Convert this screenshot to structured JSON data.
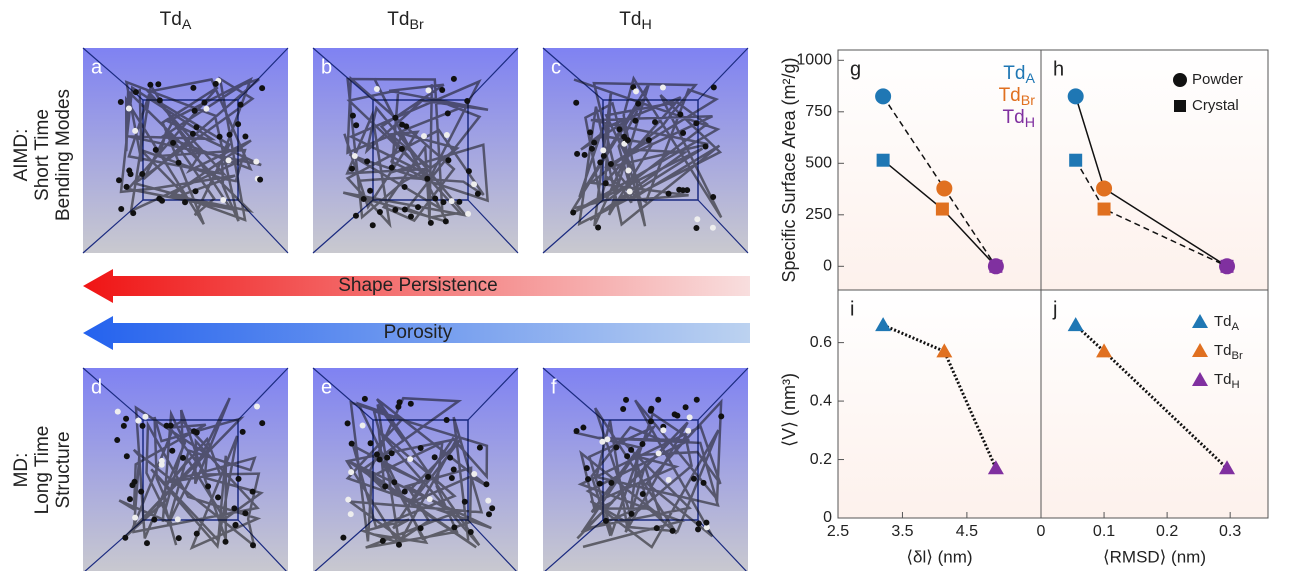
{
  "column_headers": [
    "TdA",
    "TdBr",
    "TdH"
  ],
  "panel_labels": [
    "a",
    "b",
    "c",
    "d",
    "e",
    "f"
  ],
  "row_labels": [
    [
      "AIMD:",
      "Short Time",
      "Bending Modes"
    ],
    [
      "MD:",
      "Long Time",
      "Structure"
    ]
  ],
  "arrows": [
    "Shape Persistence",
    "Porosity"
  ],
  "chart_data": [
    {
      "type": "line",
      "panel": "g",
      "ylabel": "Specific Surface Area (m²/g)",
      "xlim": [
        2.5,
        5.65
      ],
      "ylim": [
        -115,
        1050
      ],
      "yticks": [
        0,
        250,
        500,
        750,
        1000
      ],
      "labels": [
        "TdA",
        "TdBr",
        "TdH"
      ],
      "colors": [
        "#1f77b4",
        "#e07020",
        "#8030a0"
      ],
      "series": [
        {
          "marker": "circle",
          "dash": "dashed",
          "x": [
            3.2,
            4.15,
            4.95
          ],
          "values": [
            825,
            378,
            0
          ]
        },
        {
          "marker": "square",
          "dash": "solid",
          "x": [
            3.2,
            4.12,
            4.95
          ],
          "values": [
            515,
            278,
            0
          ]
        }
      ]
    },
    {
      "type": "line",
      "panel": "h",
      "xlim": [
        0,
        0.36
      ],
      "ylim": [
        -115,
        1050
      ],
      "colors": [
        "#1f77b4",
        "#e07020",
        "#8030a0"
      ],
      "series": [
        {
          "name": "Powder",
          "marker": "circle",
          "dash": "solid",
          "x": [
            0.055,
            0.1,
            0.295
          ],
          "values": [
            825,
            378,
            0
          ]
        },
        {
          "name": "Crystal",
          "marker": "square",
          "dash": "dashed",
          "x": [
            0.055,
            0.1,
            0.295
          ],
          "values": [
            515,
            278,
            0
          ]
        }
      ]
    },
    {
      "type": "line",
      "panel": "i",
      "xlabel": "⟨δl⟩ (nm)",
      "ylabel": "⟨V⟩ (nm³)",
      "xlim": [
        2.5,
        5.65
      ],
      "ylim": [
        0,
        0.78
      ],
      "xticks": [
        2.5,
        3.5,
        4.5
      ],
      "yticks": [
        0,
        0.2,
        0.4,
        0.6
      ],
      "colors": [
        "#1f77b4",
        "#e07020",
        "#8030a0"
      ],
      "series": [
        {
          "marker": "triangle",
          "dash": "dotted",
          "x": [
            3.2,
            4.15,
            4.95
          ],
          "values": [
            0.66,
            0.57,
            0.17
          ]
        }
      ]
    },
    {
      "type": "line",
      "panel": "j",
      "xlabel": "⟨RMSD⟩ (nm)",
      "xlim": [
        0,
        0.36
      ],
      "ylim": [
        0,
        0.78
      ],
      "xticks": [
        0,
        0.1,
        0.2,
        0.3
      ],
      "labels": [
        "TdA",
        "TdBr",
        "TdH"
      ],
      "colors": [
        "#1f77b4",
        "#e07020",
        "#8030a0"
      ],
      "series": [
        {
          "marker": "triangle",
          "dash": "dotted",
          "x": [
            0.055,
            0.1,
            0.295
          ],
          "values": [
            0.66,
            0.57,
            0.17
          ]
        }
      ]
    }
  ]
}
